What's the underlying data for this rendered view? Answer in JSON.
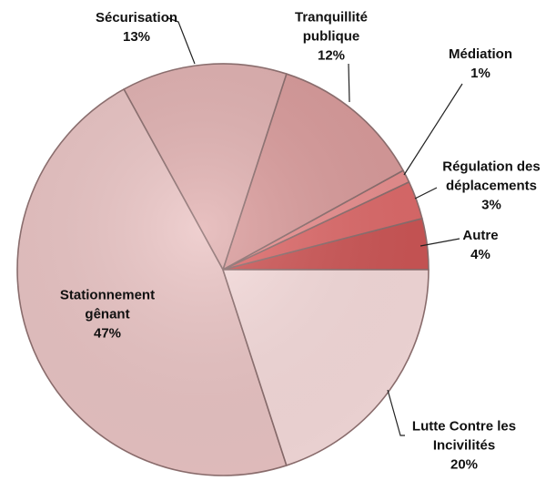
{
  "chart_data": {
    "type": "pie",
    "categories": [
      "Autre",
      "Régulation des déplacements",
      "Médiation",
      "Tranquillité publique",
      "Sécurisation",
      "Stationnement gênant",
      "Lutte Contre les Incivilités"
    ],
    "values": [
      4,
      3,
      1,
      12,
      13,
      47,
      20
    ],
    "value_labels": [
      "4%",
      "3%",
      "1%",
      "12%",
      "13%",
      "47%",
      "20%"
    ],
    "colors": [
      "#cf5656",
      "#e06b6b",
      "#ec9090",
      "#dc9d9d",
      "#e3b3b3",
      "#ecc6c6",
      "#f8dddd"
    ]
  }
}
